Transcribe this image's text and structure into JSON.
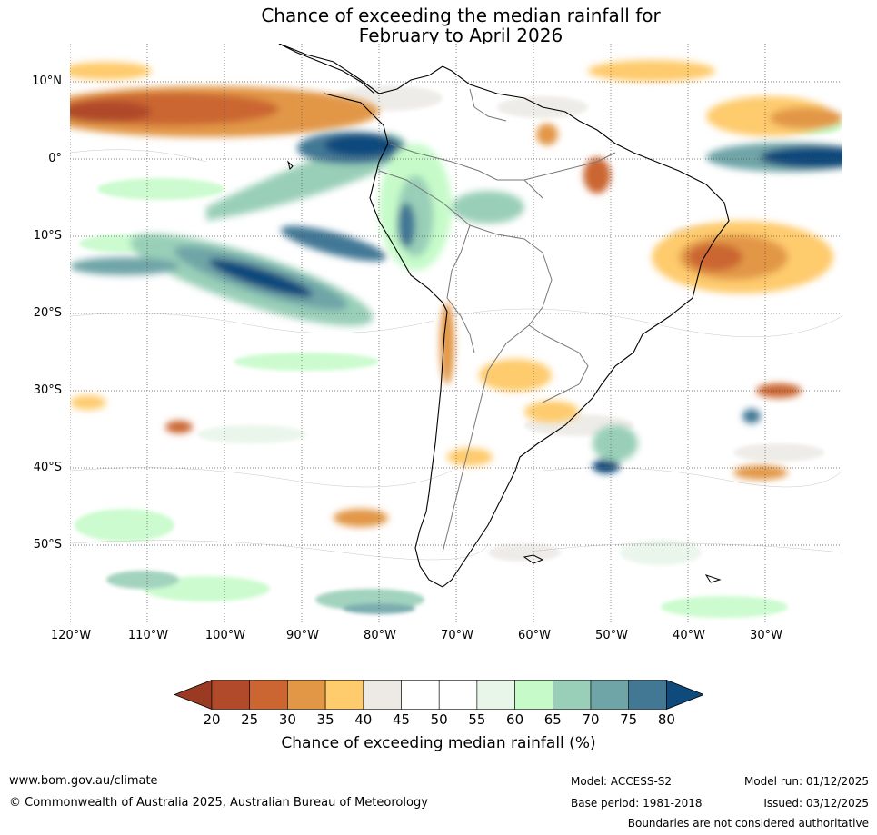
{
  "title": {
    "line1": "Chance of exceeding the median rainfall for",
    "line2": "February to April 2026"
  },
  "map": {
    "lat_ticks": [
      "10°N",
      "0°",
      "10°S",
      "20°S",
      "30°S",
      "40°S",
      "50°S"
    ],
    "lon_ticks": [
      "120°W",
      "110°W",
      "100°W",
      "90°W",
      "80°W",
      "70°W",
      "60°W",
      "50°W",
      "40°W",
      "30°W"
    ]
  },
  "colorbar": {
    "labels": [
      "20",
      "25",
      "30",
      "35",
      "40",
      "45",
      "50",
      "55",
      "60",
      "65",
      "70",
      "75",
      "80"
    ],
    "colors": [
      "#9a3a22",
      "#b04a2b",
      "#cb6633",
      "#e29746",
      "#fecb6d",
      "#edeae6",
      "#ffffff",
      "#ffffff",
      "#e8f5e9",
      "#c6fbc9",
      "#99cfb8",
      "#6fa5a7",
      "#437895",
      "#0f4a7c"
    ],
    "title": "Chance of exceeding median rainfall (%)"
  },
  "footer": {
    "website": "www.bom.gov.au/climate",
    "copyright": "© Commonwealth of Australia 2025, Australian Bureau of Meteorology",
    "model": "Model: ACCESS-S2",
    "base_period": "Base period: 1981-2018",
    "model_run": "Model run: 01/12/2025",
    "issued": "Issued: 03/12/2025",
    "disclaimer": "Boundaries are not considered authoritative"
  }
}
